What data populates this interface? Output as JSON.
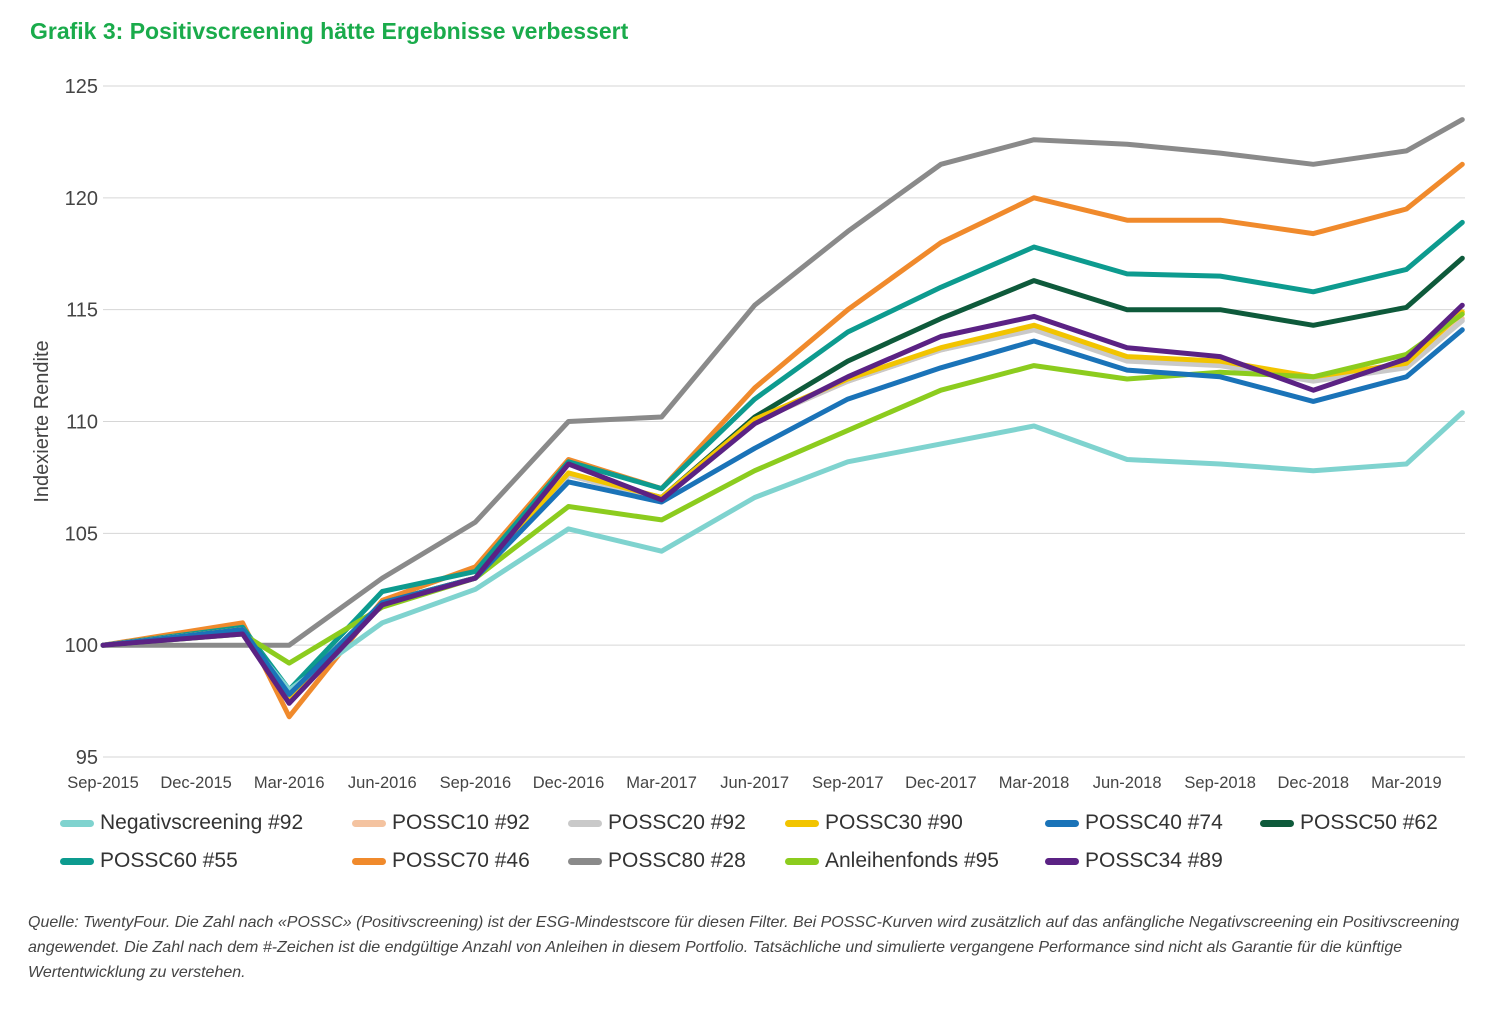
{
  "title": "Grafik 3: Positivscreening hätte Ergebnisse verbessert",
  "source_note": "Quelle: TwentyFour. Die Zahl nach «POSSC» (Positivscreening) ist der ESG-Mindestscore für diesen Filter. Bei POSSC-Kurven wird zusätzlich auf das anfängliche Negativscreening ein Positivscreening angewendet. Die Zahl nach dem #-Zeichen ist die endgültige Anzahl von Anleihen in diesem Portfolio. Tatsächliche und simulierte vergangene Performance sind nicht als Garantie für die künftige Wertentwicklung zu verstehen.",
  "chart_data": {
    "type": "line",
    "ylabel": "Indexierte Rendite",
    "xlabel": "",
    "ylim": [
      95,
      125
    ],
    "yticks": [
      95,
      100,
      105,
      110,
      115,
      120,
      125
    ],
    "x_tick_labels": [
      "Sep-2015",
      "Dec-2015",
      "Mar-2016",
      "Jun-2016",
      "Sep-2016",
      "Dec-2016",
      "Mar-2017",
      "Jun-2017",
      "Sep-2017",
      "Dec-2017",
      "Mar-2018",
      "Jun-2018",
      "Sep-2018",
      "Dec-2018",
      "Mar-2019"
    ],
    "grid": "horizontal",
    "legend_position": "bottom",
    "x": [
      0,
      1.5,
      2,
      3,
      4,
      5,
      6,
      7,
      8,
      9,
      10,
      11,
      12,
      13,
      14,
      14.6
    ],
    "series": [
      {
        "name": "Negativscreening #92",
        "color": "#7fd3cf",
        "values": [
          100,
          100.5,
          98,
          101,
          102.5,
          105.2,
          104.2,
          106.6,
          108.2,
          109,
          109.8,
          108.3,
          108.1,
          107.8,
          108.1,
          110.4
        ]
      },
      {
        "name": "POSSC10 #92",
        "color": "#f4c3a0",
        "values": [
          100,
          100.7,
          97.5,
          101.8,
          103,
          107.6,
          106.5,
          110,
          111.8,
          113.2,
          114.2,
          112.8,
          112.6,
          111.9,
          112.5,
          114.6
        ]
      },
      {
        "name": "POSSC20 #92",
        "color": "#c9c9c9",
        "values": [
          100,
          100.7,
          97.6,
          101.8,
          103,
          107.6,
          106.5,
          110,
          111.8,
          113.2,
          114.1,
          112.7,
          112.5,
          111.8,
          112.4,
          114.5
        ]
      },
      {
        "name": "POSSC30 #90",
        "color": "#f2c400",
        "values": [
          100,
          100.7,
          97.6,
          101.9,
          103,
          107.7,
          106.6,
          110.1,
          111.9,
          113.3,
          114.3,
          112.9,
          112.7,
          112,
          112.6,
          114.9
        ]
      },
      {
        "name": "POSSC40 #74",
        "color": "#1a73b8",
        "values": [
          100,
          100.7,
          97.8,
          101.9,
          103,
          107.3,
          106.4,
          108.8,
          111,
          112.4,
          113.6,
          112.3,
          112,
          110.9,
          112,
          114.1
        ]
      },
      {
        "name": "POSSC50 #62",
        "color": "#0e5a3b",
        "values": [
          100,
          100.7,
          97.8,
          101.9,
          103,
          107.6,
          106.6,
          110.2,
          112.7,
          114.6,
          116.3,
          115,
          115,
          114.3,
          115.1,
          117.3
        ]
      },
      {
        "name": "POSSC60 #55",
        "color": "#0d9b8f",
        "values": [
          100,
          100.8,
          98,
          102.4,
          103.3,
          108.2,
          107,
          111,
          114,
          116,
          117.8,
          116.6,
          116.5,
          115.8,
          116.8,
          118.9
        ]
      },
      {
        "name": "POSSC70 #46",
        "color": "#f08a2c",
        "values": [
          100,
          101,
          96.8,
          102,
          103.5,
          108.3,
          107,
          111.5,
          115,
          118,
          120,
          119,
          119,
          118.4,
          119.5,
          121.5
        ]
      },
      {
        "name": "POSSC80 #28",
        "color": "#8a8a8a",
        "values": [
          100,
          100,
          100,
          103,
          105.5,
          110,
          110.2,
          115.2,
          118.5,
          121.5,
          122.6,
          122.4,
          122,
          121.5,
          122.1,
          123.5
        ]
      },
      {
        "name": "Anleihenfonds #95",
        "color": "#8ccc1e",
        "values": [
          100,
          100.5,
          99.2,
          101.7,
          103,
          106.2,
          105.6,
          107.8,
          109.6,
          111.4,
          112.5,
          111.9,
          112.2,
          112,
          113,
          114.8
        ]
      },
      {
        "name": "POSSC34 #89",
        "color": "#5b2284",
        "values": [
          100,
          100.5,
          97.4,
          101.8,
          103,
          108.1,
          106.5,
          109.9,
          112,
          113.8,
          114.7,
          113.3,
          112.9,
          111.4,
          112.8,
          115.2
        ]
      }
    ]
  }
}
